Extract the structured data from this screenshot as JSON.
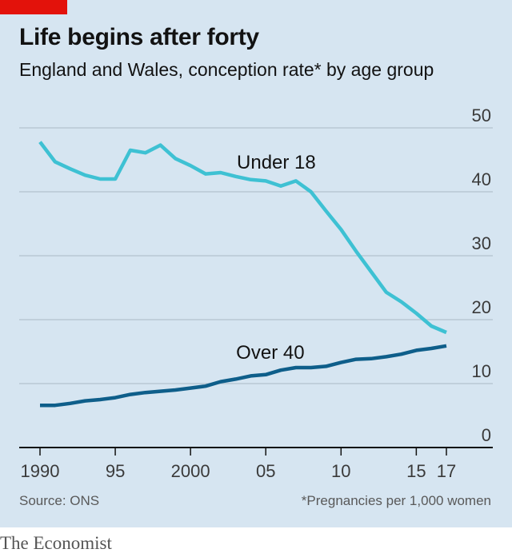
{
  "header": {
    "title": "Life begins after forty",
    "subtitle": "England and Wales, conception rate* by age group"
  },
  "footer": {
    "source": "Source: ONS",
    "footnote": "*Pregnancies per 1,000 women",
    "brand": "The Economist"
  },
  "colors": {
    "background": "#d6e5f1",
    "accent_red": "#e3120b",
    "under18": "#3ec1d3",
    "over40": "#0e5e8a",
    "grid": "#b9c8d4"
  },
  "chart_data": {
    "type": "line",
    "title": "Life begins after forty",
    "subtitle": "England and Wales, conception rate* by age group",
    "xlabel": "",
    "ylabel": "",
    "ylim": [
      0,
      50
    ],
    "xlim": [
      1990,
      2017
    ],
    "yticks": [
      0,
      10,
      20,
      30,
      40,
      50
    ],
    "ytick_labels": [
      "0",
      "10",
      "20",
      "30",
      "40",
      "50"
    ],
    "xticks": [
      1990,
      1995,
      2000,
      2005,
      2010,
      2015,
      2017
    ],
    "xtick_labels": [
      "1990",
      "95",
      "2000",
      "05",
      "10",
      "15",
      "17"
    ],
    "y_axis_position": "right",
    "grid": true,
    "series": [
      {
        "name": "Under 18",
        "x": [
          1990,
          1991,
          1992,
          1993,
          1994,
          1995,
          1996,
          1997,
          1998,
          1999,
          2000,
          2001,
          2002,
          2003,
          2004,
          2005,
          2006,
          2007,
          2008,
          2009,
          2010,
          2011,
          2012,
          2013,
          2014,
          2015,
          2016,
          2017
        ],
        "values": [
          47.8,
          44.7,
          43.6,
          42.6,
          42.0,
          42.0,
          46.5,
          46.1,
          47.3,
          45.2,
          44.1,
          42.8,
          43.0,
          42.4,
          41.9,
          41.7,
          40.9,
          41.7,
          40.0,
          37.0,
          34.1,
          30.7,
          27.5,
          24.3,
          22.8,
          21.0,
          19.0,
          18.0
        ]
      },
      {
        "name": "Over 40",
        "x": [
          1990,
          1991,
          1992,
          1993,
          1994,
          1995,
          1996,
          1997,
          1998,
          1999,
          2000,
          2001,
          2002,
          2003,
          2004,
          2005,
          2006,
          2007,
          2008,
          2009,
          2010,
          2011,
          2012,
          2013,
          2014,
          2015,
          2016,
          2017
        ],
        "values": [
          6.6,
          6.6,
          6.9,
          7.3,
          7.5,
          7.8,
          8.3,
          8.6,
          8.8,
          9.0,
          9.3,
          9.6,
          10.3,
          10.7,
          11.2,
          11.4,
          12.1,
          12.5,
          12.5,
          12.7,
          13.3,
          13.8,
          13.9,
          14.2,
          14.6,
          15.2,
          15.5,
          15.9
        ]
      }
    ],
    "annotations": [
      {
        "text": "Under 18",
        "series": "Under 18"
      },
      {
        "text": "Over 40",
        "series": "Over 40"
      }
    ]
  }
}
